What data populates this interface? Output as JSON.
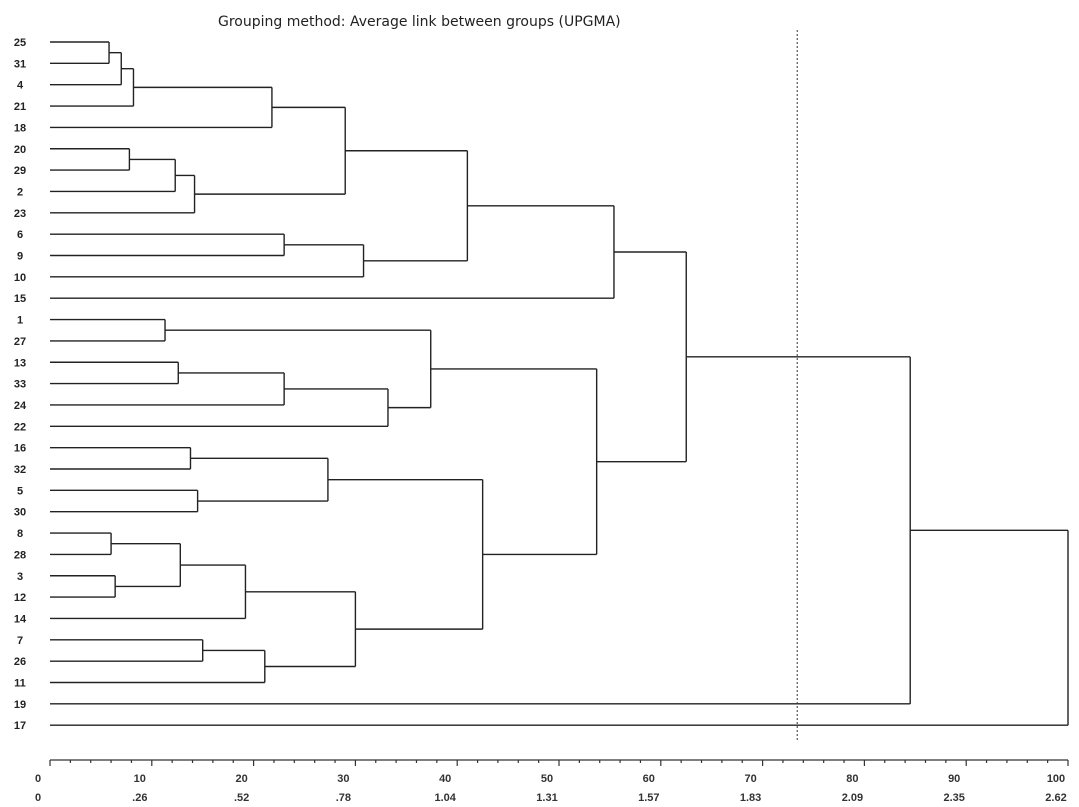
{
  "chart_data": {
    "type": "dendrogram",
    "title": "Grouping method: Average link between groups (UPGMA)",
    "leaves": [
      "25",
      "31",
      "4",
      "21",
      "18",
      "20",
      "29",
      "2",
      "23",
      "6",
      "9",
      "10",
      "15",
      "1",
      "27",
      "13",
      "33",
      "24",
      "22",
      "16",
      "32",
      "5",
      "30",
      "8",
      "28",
      "3",
      "12",
      "14",
      "7",
      "26",
      "11",
      "19",
      "17"
    ],
    "merges": [
      {
        "id": "n1",
        "children": [
          "25",
          "31"
        ],
        "height": 5.8
      },
      {
        "id": "n2",
        "children": [
          "n1",
          "4"
        ],
        "height": 7.0
      },
      {
        "id": "n3",
        "children": [
          "n2",
          "21"
        ],
        "height": 8.2
      },
      {
        "id": "n4",
        "children": [
          "n3",
          "18"
        ],
        "height": 21.8
      },
      {
        "id": "n5",
        "children": [
          "20",
          "29"
        ],
        "height": 7.8
      },
      {
        "id": "n6",
        "children": [
          "n5",
          "2"
        ],
        "height": 12.3
      },
      {
        "id": "n7",
        "children": [
          "n6",
          "23"
        ],
        "height": 14.2
      },
      {
        "id": "n8",
        "children": [
          "n4",
          "n7"
        ],
        "height": 29.0
      },
      {
        "id": "n9",
        "children": [
          "6",
          "9"
        ],
        "height": 23.0
      },
      {
        "id": "n10",
        "children": [
          "n9",
          "10"
        ],
        "height": 30.8
      },
      {
        "id": "n11",
        "children": [
          "n8",
          "n10"
        ],
        "height": 41.0
      },
      {
        "id": "n12",
        "children": [
          "n11",
          "15"
        ],
        "height": 55.4
      },
      {
        "id": "n13",
        "children": [
          "1",
          "27"
        ],
        "height": 11.3
      },
      {
        "id": "n14",
        "children": [
          "13",
          "33"
        ],
        "height": 12.6
      },
      {
        "id": "n15",
        "children": [
          "n14",
          "24"
        ],
        "height": 23.0
      },
      {
        "id": "n16",
        "children": [
          "n15",
          "22"
        ],
        "height": 33.2
      },
      {
        "id": "n17",
        "children": [
          "n13",
          "n16"
        ],
        "height": 37.4
      },
      {
        "id": "n18",
        "children": [
          "16",
          "32"
        ],
        "height": 13.8
      },
      {
        "id": "n19",
        "children": [
          "5",
          "30"
        ],
        "height": 14.5
      },
      {
        "id": "n20",
        "children": [
          "n18",
          "n19"
        ],
        "height": 27.3
      },
      {
        "id": "n21",
        "children": [
          "8",
          "28"
        ],
        "height": 6.0
      },
      {
        "id": "n22",
        "children": [
          "3",
          "12"
        ],
        "height": 6.4
      },
      {
        "id": "n23",
        "children": [
          "n21",
          "n22"
        ],
        "height": 12.8
      },
      {
        "id": "n24",
        "children": [
          "n23",
          "14"
        ],
        "height": 19.2
      },
      {
        "id": "n25",
        "children": [
          "7",
          "26"
        ],
        "height": 15.0
      },
      {
        "id": "n26",
        "children": [
          "n25",
          "11"
        ],
        "height": 21.1
      },
      {
        "id": "n27",
        "children": [
          "n24",
          "n26"
        ],
        "height": 30.0
      },
      {
        "id": "n28",
        "children": [
          "n20",
          "n27"
        ],
        "height": 42.5
      },
      {
        "id": "n29",
        "children": [
          "n17",
          "n28"
        ],
        "height": 53.7
      },
      {
        "id": "n30",
        "children": [
          "n12",
          "n29"
        ],
        "height": 62.5
      },
      {
        "id": "n31",
        "children": [
          "n30",
          "19"
        ],
        "height": 84.5
      },
      {
        "id": "n32",
        "children": [
          "n31",
          "17"
        ],
        "height": 100.0
      }
    ],
    "axis_rescaled": {
      "ticks": [
        "0",
        "10",
        "20",
        "30",
        "40",
        "50",
        "60",
        "70",
        "80",
        "90",
        "100"
      ],
      "xlim": [
        0,
        100
      ]
    },
    "axis_distance": {
      "ticks": [
        "0",
        ".26",
        ".52",
        ".78",
        "1.04",
        "1.31",
        "1.57",
        "1.83",
        "2.09",
        "2.35",
        "2.62"
      ]
    },
    "cut_line": 73.4,
    "grid": false,
    "legend": "none"
  }
}
